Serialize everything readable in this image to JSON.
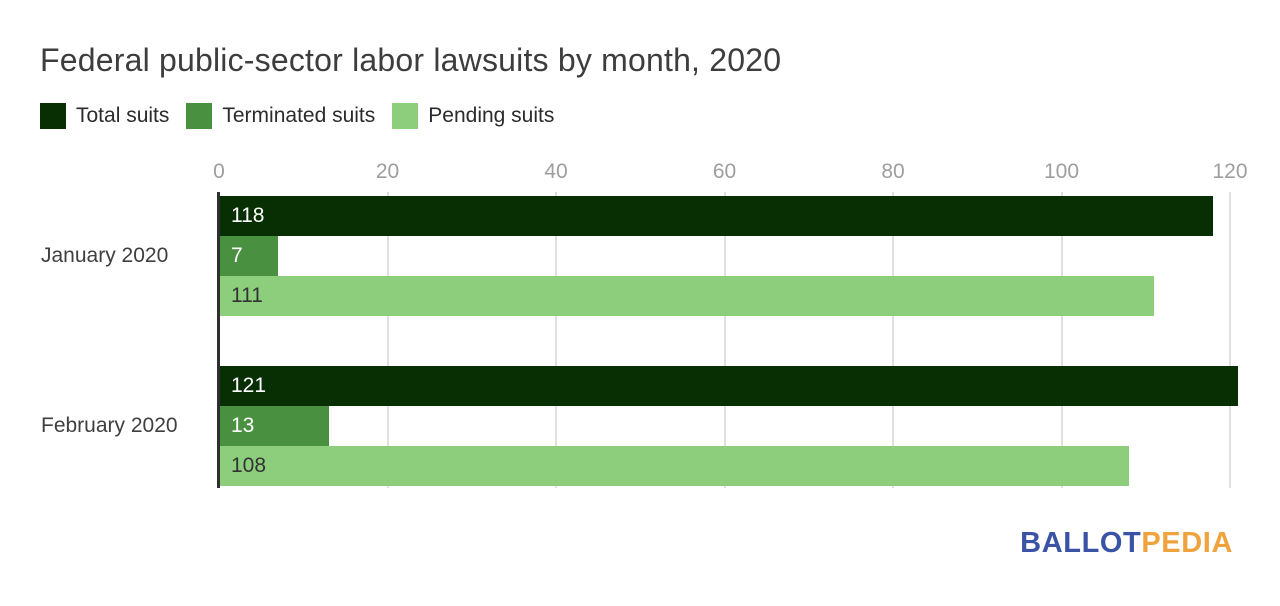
{
  "title": "Federal public-sector labor lawsuits by month, 2020",
  "legend": [
    {
      "label": "Total suits",
      "color": "#082f04"
    },
    {
      "label": "Terminated suits",
      "color": "#4a9041"
    },
    {
      "label": "Pending suits",
      "color": "#8cce7c"
    }
  ],
  "chart_data": {
    "type": "bar",
    "orientation": "horizontal",
    "title": "Federal public-sector labor lawsuits by month, 2020",
    "categories": [
      "January 2020",
      "February 2020"
    ],
    "series": [
      {
        "name": "Total suits",
        "color": "#082f04",
        "label_color": "#ffffff",
        "values": [
          118,
          121
        ]
      },
      {
        "name": "Terminated suits",
        "color": "#4a9041",
        "label_color": "#ffffff",
        "values": [
          7,
          13
        ]
      },
      {
        "name": "Pending suits",
        "color": "#8cce7c",
        "label_color": "#333333",
        "values": [
          111,
          108
        ]
      }
    ],
    "x_ticks": [
      0,
      20,
      40,
      60,
      80,
      100,
      120
    ],
    "xlim": [
      0,
      120
    ],
    "xlabel": "",
    "ylabel": "",
    "grid": true,
    "legend_position": "top",
    "value_labels": "inside-start",
    "colors": {
      "grid": "#e0e0e0",
      "axis_line": "#2f2f2f",
      "tick_text": "#9e9e9e",
      "category_text": "#3f3f3f"
    }
  },
  "branding": {
    "ballot": "BALLOT",
    "pedia": "PEDIA",
    "ballot_color": "#3a53a4",
    "pedia_color": "#f0a33c"
  }
}
